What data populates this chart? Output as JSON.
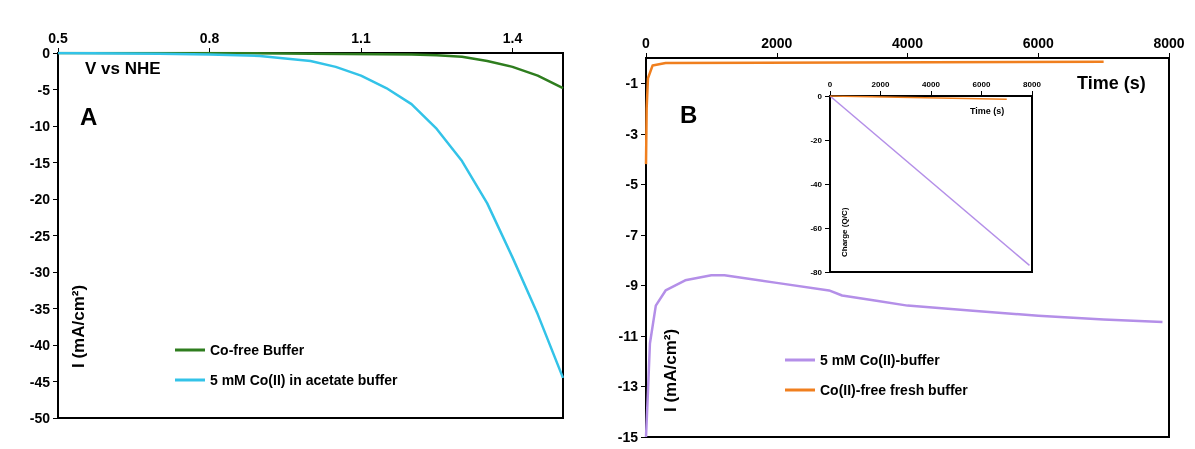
{
  "chart_data": [
    {
      "type": "line",
      "xlabel": "V vs NHE",
      "ylabel": "I (mA/cm²)",
      "xlim": [
        0.5,
        1.5
      ],
      "ylim": [
        -50,
        0
      ],
      "xticks": [
        0.5,
        0.8,
        1.1,
        1.4
      ],
      "yticks": [
        -50,
        -45,
        -40,
        -35,
        -30,
        -25,
        -20,
        -15,
        -10,
        -5,
        0
      ],
      "grid": false,
      "legend": "bottom",
      "marker": "none",
      "line_style": "solid",
      "annotations": [
        "A"
      ],
      "series": [
        {
          "name": "Co-free Buffer",
          "color": "#2e7d1e",
          "x": [
            0.5,
            0.8,
            1.0,
            1.2,
            1.25,
            1.3,
            1.35,
            1.4,
            1.45,
            1.5
          ],
          "values": [
            0,
            0,
            -0.1,
            -0.2,
            -0.3,
            -0.5,
            -1.1,
            -1.9,
            -3.1,
            -4.8
          ]
        },
        {
          "name": "5 mM Co(II) in acetate buffer",
          "color": "#33c3e8",
          "x": [
            0.5,
            0.7,
            0.8,
            0.9,
            1.0,
            1.05,
            1.1,
            1.15,
            1.2,
            1.25,
            1.3,
            1.35,
            1.4,
            1.45,
            1.5
          ],
          "values": [
            0,
            -0.1,
            -0.2,
            -0.4,
            -1.1,
            -1.9,
            -3.1,
            -4.8,
            -7,
            -10.4,
            -14.8,
            -20.6,
            -28,
            -35.8,
            -44.5
          ]
        }
      ]
    },
    {
      "type": "line",
      "xlabel": "Time (s)",
      "ylabel": "I (mA/cm²)",
      "xlim": [
        0,
        8000
      ],
      "ylim": [
        -15,
        0
      ],
      "xticks": [
        0,
        2000,
        4000,
        6000,
        8000
      ],
      "yticks": [
        -15,
        -13,
        -11,
        -9,
        -7,
        -5,
        -3,
        -1
      ],
      "grid": false,
      "legend": "bottom",
      "marker": "none",
      "line_style": "solid",
      "annotations": [
        "B"
      ],
      "series": [
        {
          "name": "5 mM Co(II)-buffer",
          "color": "#b48fe8",
          "x": [
            0,
            30,
            60,
            150,
            300,
            600,
            1000,
            1200,
            2000,
            2800,
            3000,
            3500,
            4000,
            5000,
            6000,
            7000,
            7900
          ],
          "values": [
            -15,
            -13.2,
            -11.3,
            -9.8,
            -9.2,
            -8.8,
            -8.6,
            -8.6,
            -8.9,
            -9.2,
            -9.4,
            -9.6,
            -9.8,
            -10,
            -10.2,
            -10.35,
            -10.45
          ]
        },
        {
          "name": "Co(II)-free fresh buffer",
          "color": "#f07f1e",
          "x": [
            0,
            10,
            30,
            100,
            300,
            7000
          ],
          "values": [
            -4.2,
            -2,
            -0.8,
            -0.3,
            -0.2,
            -0.15
          ]
        }
      ]
    },
    {
      "type": "line",
      "xlabel": "Time (s)",
      "ylabel": "Charge (Q/C)",
      "xlim": [
        0,
        8000
      ],
      "ylim": [
        -80,
        0
      ],
      "xticks": [
        0,
        2000,
        4000,
        6000,
        8000
      ],
      "yticks": [
        -80,
        -60,
        -40,
        -20,
        0
      ],
      "grid": false,
      "legend": false,
      "marker": "none",
      "line_style": "solid",
      "series": [
        {
          "color": "#b48fe8",
          "x": [
            0,
            7900
          ],
          "values": [
            0,
            -77
          ]
        },
        {
          "color": "#f07f1e",
          "x": [
            0,
            7000
          ],
          "values": [
            0,
            -1.5
          ]
        }
      ]
    }
  ]
}
